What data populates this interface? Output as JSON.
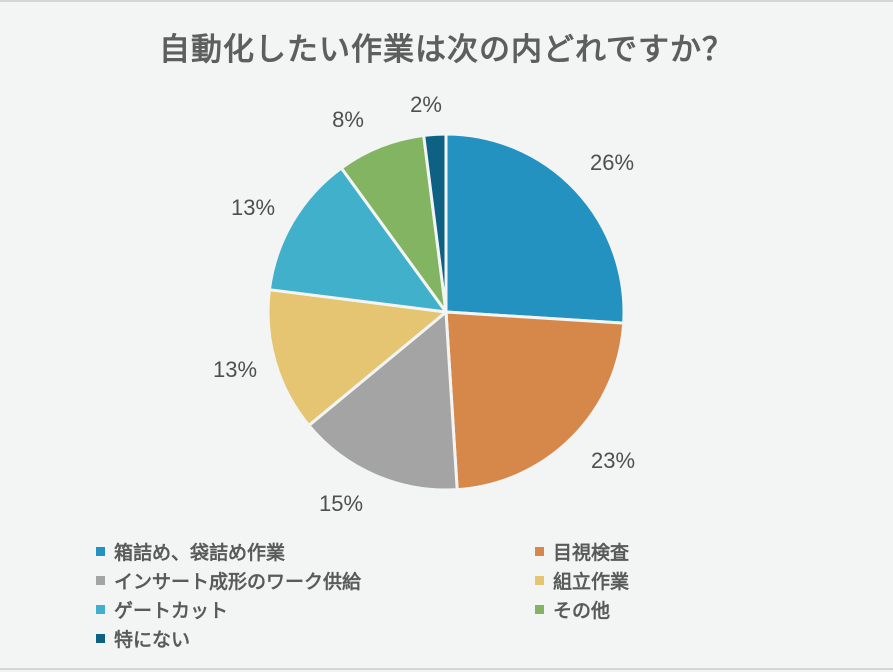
{
  "title": "自動化したい作業は次の内どれですか？",
  "chart_data": {
    "type": "pie",
    "title": "自動化したい作業は次の内どれですか？",
    "categories": [
      "箱詰め、袋詰め作業",
      "目視検査",
      "インサート成形のワーク供給",
      "組立作業",
      "ゲートカット",
      "その他",
      "特にない"
    ],
    "values": [
      26,
      23,
      15,
      13,
      13,
      8,
      2
    ],
    "labels": [
      "26%",
      "23%",
      "15%",
      "13%",
      "13%",
      "8%",
      "2%"
    ],
    "colors": [
      "#2492c0",
      "#d6884b",
      "#a4a4a4",
      "#e5c472",
      "#40b0cb",
      "#82b462",
      "#0f6184"
    ],
    "start_angle": "12 o'clock",
    "direction": "clockwise",
    "legend_position": "bottom"
  },
  "legend": [
    {
      "label": "箱詰め、袋詰め作業",
      "color": "#2492c0"
    },
    {
      "label": "目視検査",
      "color": "#d6884b"
    },
    {
      "label": "インサート成形のワーク供給",
      "color": "#a4a4a4"
    },
    {
      "label": "組立作業",
      "color": "#e5c472"
    },
    {
      "label": "ゲートカット",
      "color": "#40b0cb"
    },
    {
      "label": "その他",
      "color": "#82b462"
    },
    {
      "label": "特にない",
      "color": "#0f6184"
    }
  ]
}
